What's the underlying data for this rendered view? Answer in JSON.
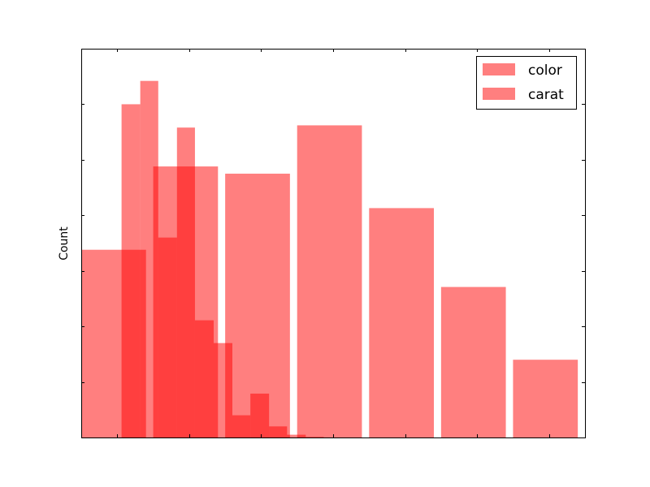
{
  "chart_data": {
    "type": "histogram",
    "title": "",
    "xlabel": "",
    "ylabel": "Count",
    "xlim": [
      0,
      7
    ],
    "ylim": [
      0,
      7
    ],
    "grid": false,
    "legend_position": "top-right",
    "tick_labels_visible": false,
    "xticks": [
      0.5,
      1.5,
      2.5,
      3.5,
      4.5,
      5.5,
      6.5
    ],
    "yticks": [
      1,
      2,
      3,
      4,
      5,
      6
    ],
    "series": [
      {
        "name": "color",
        "color": "#ff0000",
        "opacity": 0.5,
        "bars": [
          {
            "x0": 0.0,
            "x1": 0.9,
            "value": 3.38
          },
          {
            "x0": 1.0,
            "x1": 1.9,
            "value": 4.88
          },
          {
            "x0": 2.0,
            "x1": 2.9,
            "value": 4.75
          },
          {
            "x0": 3.0,
            "x1": 3.9,
            "value": 5.62
          },
          {
            "x0": 4.0,
            "x1": 4.9,
            "value": 4.13
          },
          {
            "x0": 5.0,
            "x1": 5.9,
            "value": 2.71
          },
          {
            "x0": 6.0,
            "x1": 6.9,
            "value": 1.4
          }
        ]
      },
      {
        "name": "carat",
        "color": "#ff0000",
        "opacity": 0.5,
        "bars": [
          {
            "x0": 0.56,
            "x1": 0.82,
            "value": 6.0
          },
          {
            "x0": 0.82,
            "x1": 1.07,
            "value": 6.42
          },
          {
            "x0": 1.07,
            "x1": 1.33,
            "value": 3.6
          },
          {
            "x0": 1.33,
            "x1": 1.58,
            "value": 5.58
          },
          {
            "x0": 1.58,
            "x1": 1.84,
            "value": 2.11
          },
          {
            "x0": 1.84,
            "x1": 2.1,
            "value": 1.7
          },
          {
            "x0": 2.1,
            "x1": 2.35,
            "value": 0.4
          },
          {
            "x0": 2.35,
            "x1": 2.61,
            "value": 0.79
          },
          {
            "x0": 2.61,
            "x1": 2.86,
            "value": 0.2
          },
          {
            "x0": 2.86,
            "x1": 3.12,
            "value": 0.05
          },
          {
            "x0": 3.12,
            "x1": 3.37,
            "value": 0.01
          }
        ]
      }
    ]
  }
}
